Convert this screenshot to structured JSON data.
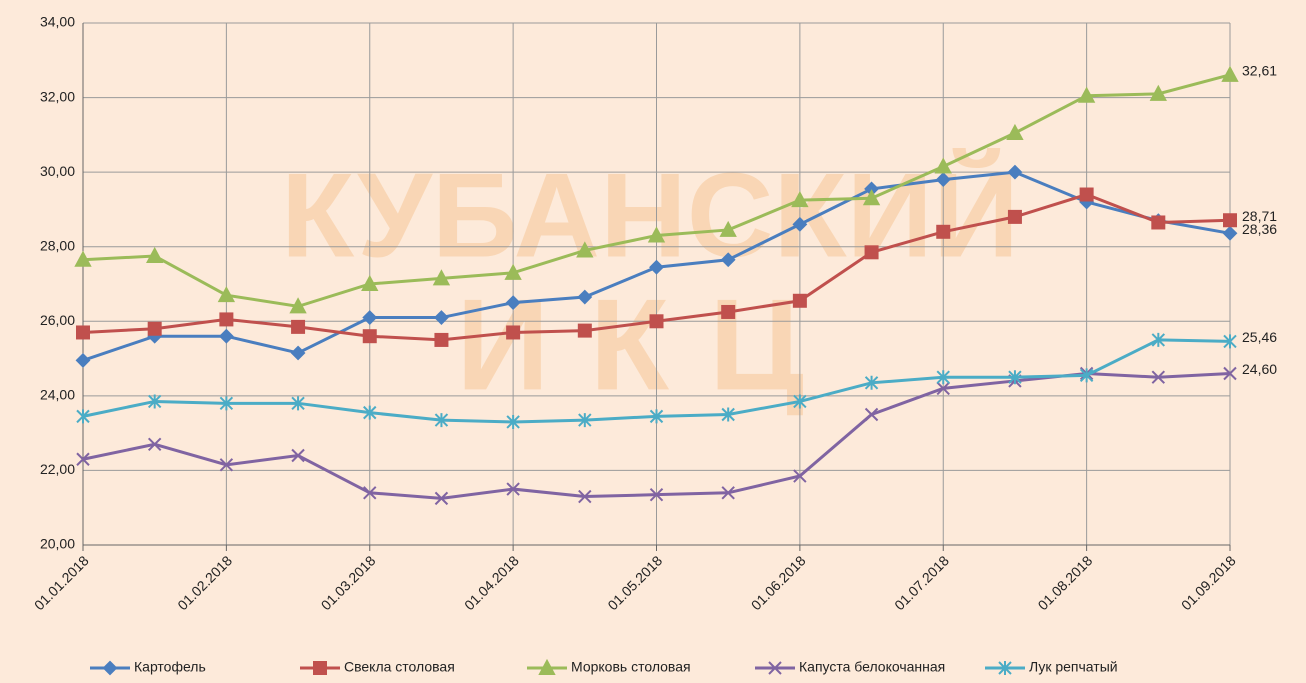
{
  "chart_data": {
    "type": "line",
    "watermark": [
      "КУБАНСКИЙ",
      "ИКЦ"
    ],
    "categories": [
      "01.01.2018",
      null,
      "01.02.2018",
      null,
      "01.03.2018",
      null,
      "01.04.2018",
      null,
      "01.05.2018",
      null,
      "01.06.2018",
      null,
      "01.07.2018",
      null,
      "01.08.2018",
      null,
      "01.09.2018"
    ],
    "ylim": [
      20,
      34
    ],
    "yticks": [
      {
        "value": 20,
        "label": "20,00"
      },
      {
        "value": 22,
        "label": "22,00"
      },
      {
        "value": 24,
        "label": "24,00"
      },
      {
        "value": 26,
        "label": "26,00"
      },
      {
        "value": 28,
        "label": "28,00"
      },
      {
        "value": 30,
        "label": "30,00"
      },
      {
        "value": 32,
        "label": "32,00"
      },
      {
        "value": 34,
        "label": "34,00"
      }
    ],
    "grid": true,
    "legend": "bottom",
    "series": [
      {
        "name": "Картофель",
        "color": "#4a7ebf",
        "marker": "diamond",
        "values": [
          24.95,
          25.6,
          25.6,
          25.15,
          26.1,
          26.1,
          26.5,
          26.65,
          27.45,
          27.65,
          28.6,
          29.55,
          29.8,
          30.0,
          29.2,
          28.7,
          28.36
        ],
        "value_labels": [
          null,
          null,
          null,
          null,
          null,
          null,
          null,
          null,
          null,
          null,
          null,
          null,
          null,
          null,
          null,
          null,
          "28,36"
        ]
      },
      {
        "name": "Свекла столовая",
        "color": "#c0504d",
        "marker": "square",
        "values": [
          25.7,
          25.8,
          26.05,
          25.85,
          25.6,
          25.5,
          25.7,
          25.75,
          26.0,
          26.25,
          26.55,
          27.85,
          28.4,
          28.8,
          29.4,
          28.65,
          28.71
        ],
        "value_labels": [
          null,
          null,
          null,
          null,
          null,
          null,
          null,
          null,
          null,
          null,
          null,
          null,
          null,
          null,
          null,
          null,
          "28,71"
        ]
      },
      {
        "name": "Морковь столовая",
        "color": "#9bbb59",
        "marker": "triangle",
        "values": [
          27.65,
          27.75,
          26.7,
          26.4,
          27.0,
          27.15,
          27.3,
          27.9,
          28.3,
          28.45,
          29.25,
          29.3,
          30.15,
          31.05,
          32.05,
          32.1,
          32.61
        ],
        "value_labels": [
          null,
          null,
          null,
          null,
          null,
          null,
          null,
          null,
          null,
          null,
          null,
          null,
          null,
          null,
          null,
          null,
          "32,61"
        ]
      },
      {
        "name": "Капуста белокочанная",
        "color": "#8064a2",
        "marker": "x",
        "values": [
          22.3,
          22.7,
          22.15,
          22.4,
          21.4,
          21.25,
          21.5,
          21.3,
          21.35,
          21.4,
          21.85,
          23.5,
          24.2,
          24.4,
          24.6,
          24.5,
          24.6
        ],
        "value_labels": [
          null,
          null,
          null,
          null,
          null,
          null,
          null,
          null,
          null,
          null,
          null,
          null,
          null,
          null,
          null,
          null,
          "24,60"
        ]
      },
      {
        "name": "Лук репчатый",
        "color": "#4bacc6",
        "marker": "star",
        "values": [
          23.45,
          23.85,
          23.8,
          23.8,
          23.55,
          23.35,
          23.3,
          23.35,
          23.45,
          23.5,
          23.85,
          24.35,
          24.5,
          24.5,
          24.55,
          25.5,
          25.46
        ],
        "value_labels": [
          null,
          null,
          null,
          null,
          null,
          null,
          null,
          null,
          null,
          null,
          null,
          null,
          null,
          null,
          null,
          null,
          "25,46"
        ]
      }
    ]
  }
}
